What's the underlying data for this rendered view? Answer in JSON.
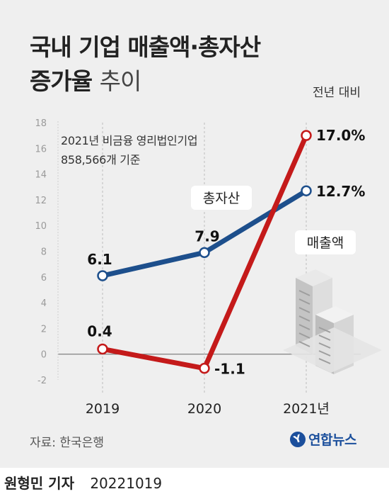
{
  "header": {
    "title_line1": "국내 기업 매출액·총자산",
    "title_line2_bold": "증가율",
    "title_line2_light": "추이",
    "unit": "전년 대비"
  },
  "note": {
    "line1": "2021년 비금융 영리법인기업",
    "line2": "858,566개 기준"
  },
  "chart_data": {
    "type": "line",
    "categories": [
      "2019",
      "2020",
      "2021년"
    ],
    "ylim": [
      -2,
      18
    ],
    "yticks": [
      "18",
      "16",
      "14",
      "12",
      "10",
      "8",
      "6",
      "4",
      "2",
      "0",
      "-2"
    ],
    "series": [
      {
        "name": "총자산",
        "values": [
          6.1,
          7.9,
          12.7
        ],
        "labels": [
          "6.1",
          "7.9",
          "12.7%"
        ],
        "color": "#1d4f8c"
      },
      {
        "name": "매출액",
        "values": [
          0.4,
          -1.1,
          17.0
        ],
        "labels": [
          "0.4",
          "-1.1",
          "17.0%"
        ],
        "color": "#c41a1a"
      }
    ]
  },
  "footer": {
    "source": "자료: 한국은행",
    "logo": "연합뉴스",
    "reporter": "원형민 기자",
    "date": "20221019"
  }
}
